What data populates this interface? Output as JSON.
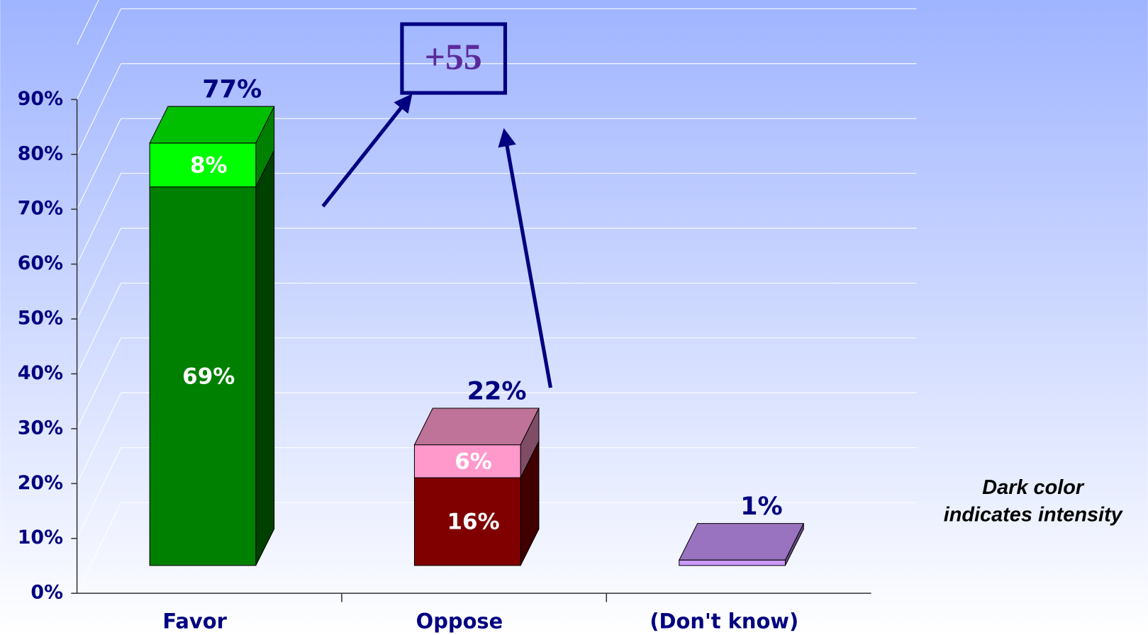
{
  "chart_data": {
    "type": "stacked-bar-3d",
    "categories": [
      "Favor",
      "Oppose",
      "(Don't know)"
    ],
    "series": [
      {
        "colors": [
          "#008000",
          "#800000",
          "#800080"
        ],
        "values": [
          69,
          16,
          null
        ],
        "value_labels": [
          "69%",
          "16%",
          null
        ]
      },
      {
        "colors": [
          "#00ff00",
          "#ff99cc",
          "#cc99ff"
        ],
        "values": [
          8,
          6,
          1
        ],
        "value_labels": [
          "8%",
          "6%",
          null
        ]
      }
    ],
    "totals": [
      77,
      22,
      1
    ],
    "total_labels": [
      "77%",
      "22%",
      "1%"
    ],
    "ylim": [
      0,
      100
    ],
    "yticks": [
      {
        "value": 0,
        "label": "0%"
      },
      {
        "value": 10,
        "label": "10%"
      },
      {
        "value": 20,
        "label": "20%"
      },
      {
        "value": 30,
        "label": "30%"
      },
      {
        "value": 40,
        "label": "40%"
      },
      {
        "value": 50,
        "label": "50%"
      },
      {
        "value": 60,
        "label": "60%"
      },
      {
        "value": 70,
        "label": "70%"
      },
      {
        "value": 80,
        "label": "80%"
      },
      {
        "value": 90,
        "label": "90%"
      }
    ],
    "grid": true,
    "annotation": "+55",
    "note": [
      "Dark color",
      "indicates intensity"
    ]
  }
}
